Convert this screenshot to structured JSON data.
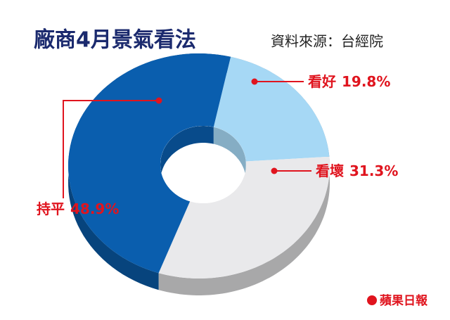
{
  "chart_data": {
    "type": "pie",
    "donut": true,
    "title": "廠商4月景氣看法",
    "source": "資料來源：台經院",
    "credit": "蘋果日報",
    "categories": [
      "看好",
      "看壞",
      "持平"
    ],
    "values": [
      19.8,
      31.3,
      48.9
    ],
    "value_labels": [
      "19.8%",
      "31.3%",
      "48.9%"
    ],
    "colors": [
      "#a6d8f5",
      "#e9e9eb",
      "#0a5eae"
    ],
    "label_color": "#e0141e"
  }
}
